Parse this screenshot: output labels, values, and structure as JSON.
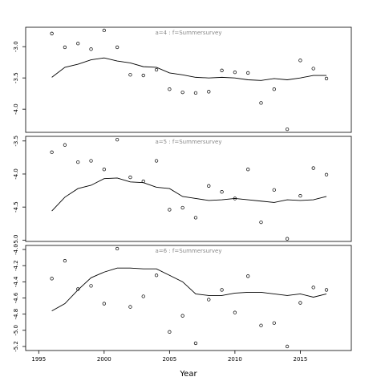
{
  "chart_data": [
    {
      "type": "scatter",
      "title": "a=4  :  f=Summersurvey",
      "x": [
        1996,
        1997,
        1998,
        1999,
        2000,
        2001,
        2002,
        2003,
        2004,
        2005,
        2006,
        2007,
        2008,
        2009,
        2010,
        2011,
        2012,
        2013,
        2014,
        2015,
        2016,
        2017
      ],
      "series": [
        {
          "kind": "points",
          "color": "#000000",
          "values": [
            -2.79,
            -3.01,
            -2.95,
            -3.04,
            -2.74,
            -3.01,
            -3.45,
            -3.46,
            -3.37,
            -3.68,
            -3.73,
            -3.74,
            -3.72,
            -3.38,
            -3.41,
            -3.42,
            -3.9,
            -3.68,
            -4.32,
            -3.22,
            -3.35,
            -3.51
          ]
        },
        {
          "kind": "line",
          "color": "#000000",
          "values": [
            -3.49,
            -3.33,
            -3.28,
            -3.21,
            -3.18,
            -3.23,
            -3.26,
            -3.32,
            -3.33,
            -3.42,
            -3.45,
            -3.49,
            -3.5,
            -3.49,
            -3.5,
            -3.53,
            -3.54,
            -3.51,
            -3.53,
            -3.5,
            -3.46,
            -3.46
          ]
        }
      ],
      "xlim": [
        1994,
        2018.9
      ],
      "ylim": [
        -4.37,
        -2.69
      ],
      "yticks": [
        {
          "value": -3,
          "label": "-3.0"
        },
        -3.5,
        {
          "value": -4,
          "label": "-4.0"
        }
      ]
    },
    {
      "type": "scatter",
      "title": "a=5  :  f=Summersurvey",
      "x": [
        1996,
        1997,
        1998,
        1999,
        2000,
        2001,
        2002,
        2003,
        2004,
        2005,
        2006,
        2007,
        2008,
        2009,
        2010,
        2011,
        2012,
        2013,
        2014,
        2015,
        2016,
        2017
      ],
      "series": [
        {
          "kind": "points",
          "color": "#000000",
          "values": [
            -3.67,
            -3.56,
            -3.82,
            -3.8,
            -3.93,
            -3.48,
            -4.05,
            -4.11,
            -3.8,
            -4.54,
            -4.51,
            -4.66,
            -4.18,
            -4.27,
            -4.37,
            -3.93,
            -4.73,
            -4.24,
            -4.98,
            -4.33,
            -3.91,
            -4.01
          ]
        },
        {
          "kind": "line",
          "color": "#000000",
          "values": [
            -4.56,
            -4.35,
            -4.22,
            -4.17,
            -4.07,
            -4.06,
            -4.12,
            -4.13,
            -4.2,
            -4.22,
            -4.34,
            -4.37,
            -4.4,
            -4.39,
            -4.37,
            -4.39,
            -4.41,
            -4.43,
            -4.39,
            -4.4,
            -4.39,
            -4.34
          ]
        }
      ],
      "xlim": [
        1994,
        2018.9
      ],
      "ylim": [
        -5.02,
        -3.43
      ],
      "yticks": [
        -3.5,
        {
          "value": -4,
          "label": "-4.0"
        },
        -4.5,
        {
          "value": -5,
          "label": "-5.0"
        }
      ]
    },
    {
      "type": "scatter",
      "title": "a=6  :  f=Summersurvey",
      "xlabel": "Year",
      "x": [
        1996,
        1997,
        1998,
        1999,
        2000,
        2001,
        2002,
        2003,
        2004,
        2005,
        2006,
        2007,
        2008,
        2009,
        2010,
        2011,
        2012,
        2013,
        2014,
        2015,
        2016,
        2017
      ],
      "series": [
        {
          "kind": "points",
          "color": "#000000",
          "values": [
            -4.36,
            -4.14,
            -4.49,
            -4.45,
            -4.67,
            -3.99,
            -4.71,
            -4.58,
            -4.32,
            -5.02,
            -4.82,
            -5.16,
            -4.62,
            -4.5,
            -4.78,
            -4.33,
            -4.94,
            -4.91,
            -5.2,
            -4.66,
            -4.47,
            -4.5
          ]
        },
        {
          "kind": "line",
          "color": "#000000",
          "values": [
            -4.76,
            -4.67,
            -4.5,
            -4.35,
            -4.28,
            -4.23,
            -4.23,
            -4.24,
            -4.24,
            -4.32,
            -4.4,
            -4.55,
            -4.57,
            -4.57,
            -4.54,
            -4.53,
            -4.53,
            -4.55,
            -4.57,
            -4.55,
            -4.59,
            -4.55
          ]
        }
      ],
      "xlim": [
        1994,
        2018.9
      ],
      "ylim": [
        -5.25,
        -3.95
      ],
      "yticks": [
        {
          "value": -4,
          "label": "-4.0"
        },
        -4.2,
        -4.4,
        -4.6,
        -4.8,
        {
          "value": -5,
          "label": "-5.0"
        },
        -5.2
      ],
      "xticks": [
        1995,
        2000,
        2005,
        2010,
        2015
      ]
    }
  ]
}
